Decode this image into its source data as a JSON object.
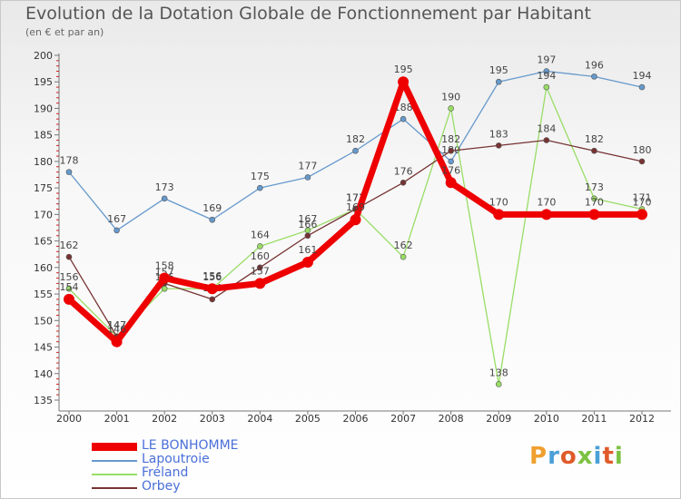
{
  "chart_data": {
    "type": "line",
    "title": "Evolution de la Dotation Globale de Fonctionnement par Habitant",
    "subtitle": "(en € et par an)",
    "xlabel": "",
    "ylabel": "",
    "categories": [
      "2000",
      "2001",
      "2002",
      "2003",
      "2004",
      "2005",
      "2006",
      "2007",
      "2008",
      "2009",
      "2010",
      "2011",
      "2012"
    ],
    "ylim": [
      135,
      200
    ],
    "yticks": [
      135,
      140,
      145,
      150,
      155,
      160,
      165,
      170,
      175,
      180,
      185,
      190,
      195,
      200
    ],
    "grid": false,
    "legend_position": "bottom-left",
    "series": [
      {
        "name": "LE BONHOMME",
        "color": "#ee0000",
        "values": [
          154,
          146,
          158,
          156,
          157,
          161,
          169,
          195,
          176,
          170,
          170,
          170,
          170
        ]
      },
      {
        "name": "Lapoutroie",
        "color": "#6699cc",
        "values": [
          178,
          167,
          173,
          169,
          175,
          177,
          182,
          188,
          180,
          195,
          197,
          196,
          194
        ]
      },
      {
        "name": "Fréland",
        "color": "#99dd66",
        "values": [
          156,
          147,
          156,
          156,
          164,
          167,
          171,
          162,
          190,
          138,
          194,
          173,
          171
        ]
      },
      {
        "name": "Orbey",
        "color": "#773333",
        "values": [
          162,
          147,
          157,
          154,
          160,
          166,
          171,
          176,
          182,
          183,
          184,
          182,
          180
        ]
      }
    ]
  },
  "branding": {
    "logo_text": "Proxiti",
    "logo_colors": [
      "#f0a030",
      "#4aa0d8",
      "#e05a2a",
      "#7cc242",
      "#4aa0d8",
      "#e05a2a",
      "#7cc242"
    ]
  }
}
